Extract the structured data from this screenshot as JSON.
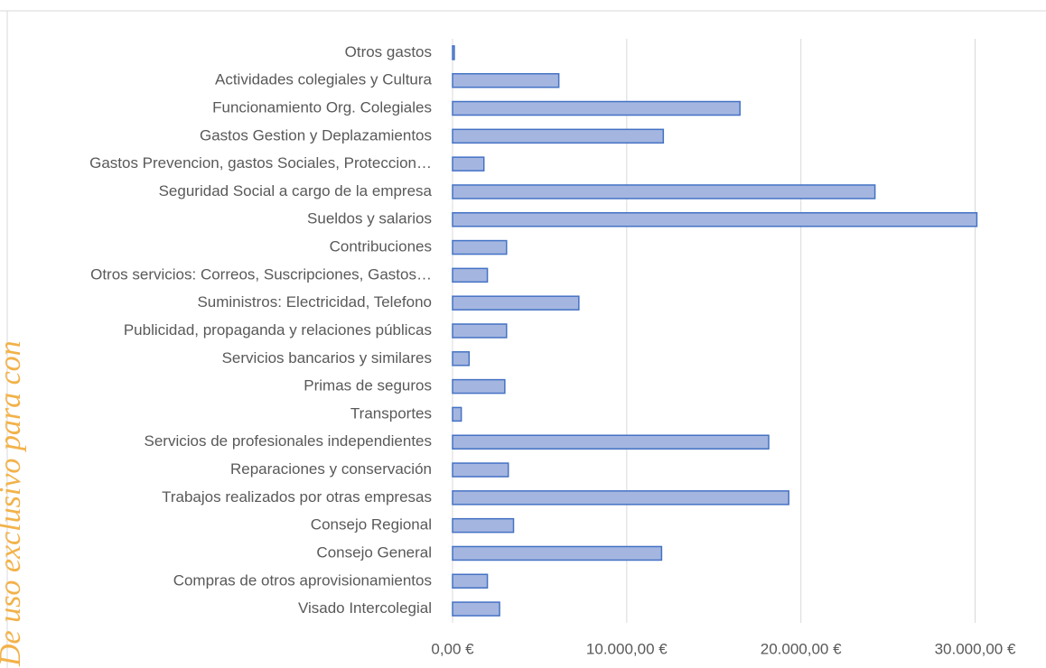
{
  "watermark": "De uso exclusivo para con",
  "chart_data": {
    "type": "barh",
    "categories": [
      "Otros gastos",
      "Actividades colegiales y Cultura",
      "Funcionamiento Org. Colegiales",
      "Gastos Gestion y Deplazamientos",
      "Gastos Prevencion, gastos Sociales, Proteccion…",
      "Seguridad Social a cargo de la empresa",
      "Sueldos y salarios",
      "Contribuciones ",
      "Otros servicios: Correos, Suscripciones, Gastos…",
      "Suministros: Electricidad, Telefono",
      "Publicidad, propaganda y relaciones públicas",
      "Servicios bancarios y similares",
      "Primas de seguros",
      "Transportes",
      "Servicios de profesionales independientes",
      "Reparaciones y conservación",
      "Trabajos realizados por otras empresas",
      "Consejo Regional",
      "Consejo General",
      "Compras de otros aprovisionamientos",
      "Visado Intercolegial"
    ],
    "values": [
      100,
      6100,
      16500,
      12100,
      1800,
      24250,
      30100,
      3100,
      2000,
      7250,
      3100,
      950,
      3000,
      500,
      18150,
      3200,
      19300,
      3500,
      12000,
      2000,
      2700
    ],
    "color": "#a4b6e0",
    "edgecolor": "#4472c4",
    "xlim": [
      0,
      33500
    ],
    "xticks": [
      {
        "value": 0,
        "label": "0,00 €"
      },
      {
        "value": 10000,
        "label": "10.000,00 €"
      },
      {
        "value": 20000,
        "label": "20.000,00 €"
      },
      {
        "value": 30000,
        "label": "30.000,00 €"
      }
    ],
    "grid": true
  }
}
